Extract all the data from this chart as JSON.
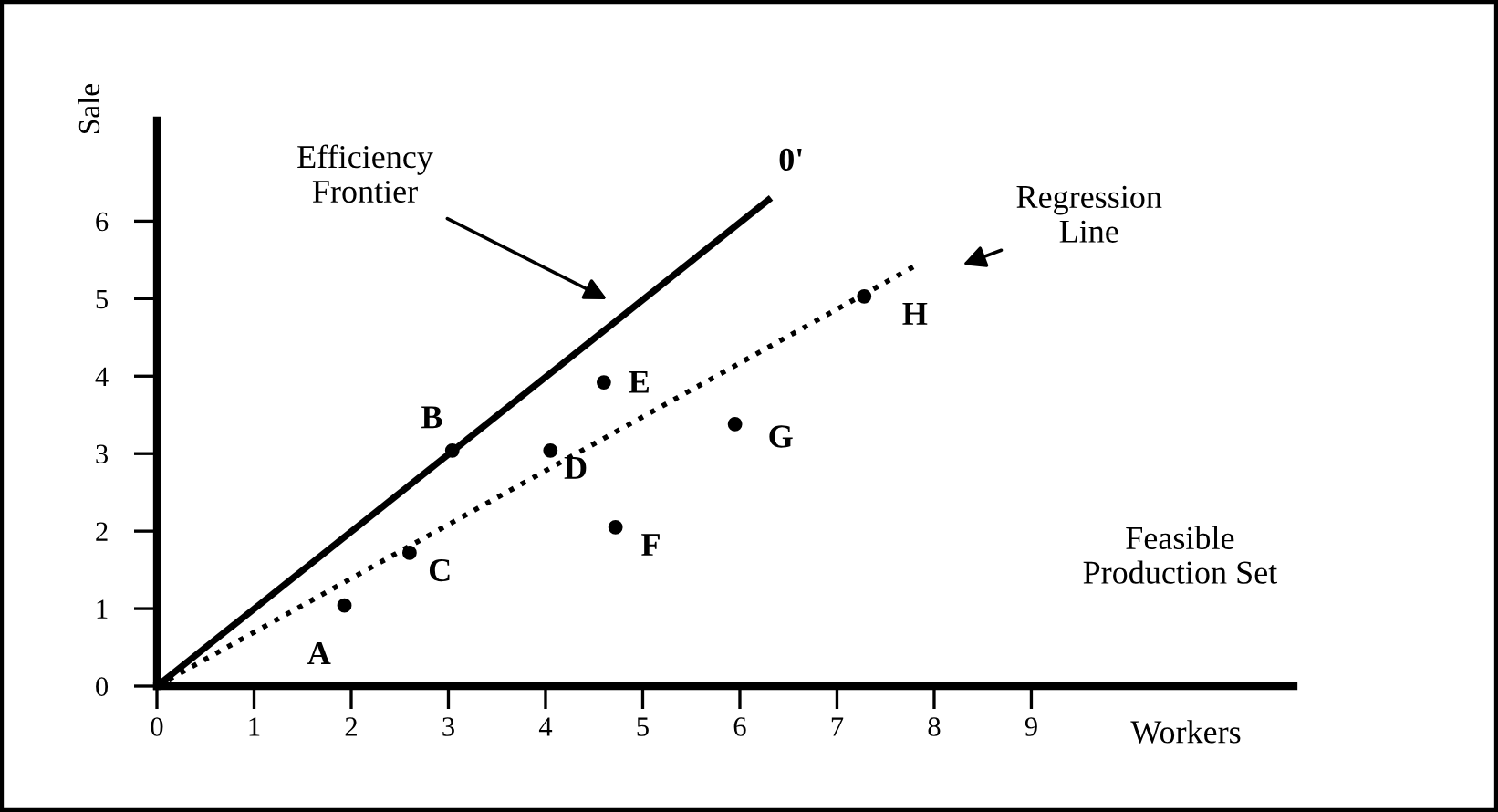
{
  "chart_data": {
    "type": "scatter",
    "xlabel": "Workers",
    "ylabel": "Sale",
    "xlim": [
      0,
      11.7
    ],
    "ylim": [
      0,
      7.3
    ],
    "xticks": [
      0,
      1,
      2,
      3,
      4,
      5,
      6,
      7,
      8,
      9
    ],
    "yticks": [
      0,
      1,
      2,
      3,
      4,
      5,
      6
    ],
    "grid": false,
    "series": [
      {
        "type": "line",
        "color": "#000000",
        "line_style": "solid",
        "x": [
          0,
          6.32
        ],
        "values": [
          0,
          6.3
        ]
      },
      {
        "type": "line",
        "color": "#000000",
        "line_style": "dotted",
        "x": [
          0,
          7.8
        ],
        "values": [
          0,
          5.42
        ]
      },
      {
        "color": "#000000",
        "marker": "circle",
        "x": [
          1.93,
          3.04,
          2.6,
          4.05,
          4.6,
          4.72,
          5.95,
          7.28
        ],
        "values": [
          1.04,
          3.04,
          1.72,
          3.04,
          3.92,
          2.05,
          3.38,
          5.03
        ]
      }
    ],
    "annotations": [
      {
        "text": "A",
        "x": 1.93,
        "y": 1.04
      },
      {
        "text": "B",
        "x": 3.04,
        "y": 3.04
      },
      {
        "text": "C",
        "x": 2.6,
        "y": 1.72
      },
      {
        "text": "D",
        "x": 4.05,
        "y": 3.04
      },
      {
        "text": "E",
        "x": 4.6,
        "y": 3.92
      },
      {
        "text": "F",
        "x": 4.72,
        "y": 2.05
      },
      {
        "text": "G",
        "x": 5.95,
        "y": 3.38
      },
      {
        "text": "H",
        "x": 7.28,
        "y": 5.03
      },
      {
        "text": "0'",
        "x": 6.32,
        "y": 6.3
      },
      "Efficiency\nFrontier",
      "Regression\nLine",
      "Feasible\nProduction Set"
    ]
  }
}
